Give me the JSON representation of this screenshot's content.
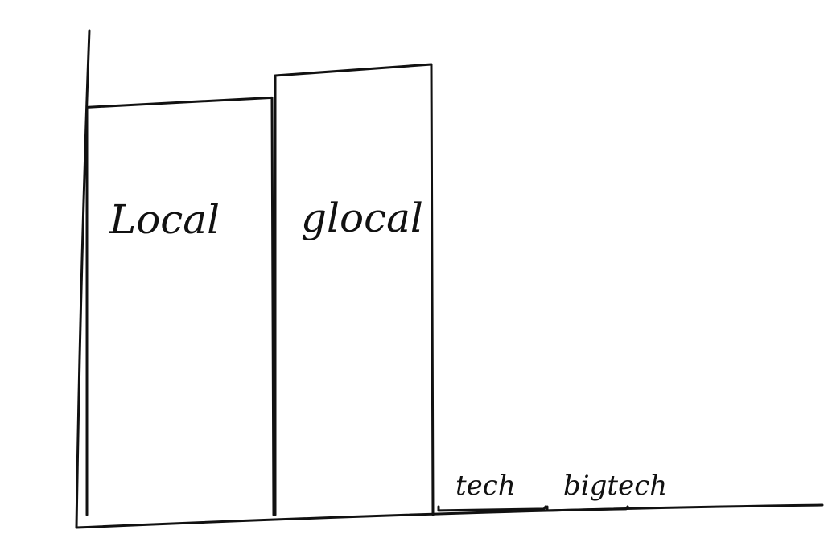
{
  "chart_data": {
    "type": "bar",
    "categories": [
      "Local",
      "glocal",
      "tech",
      "bigtech"
    ],
    "values": [
      100,
      108,
      1,
      1
    ],
    "ylim": [
      0,
      120
    ],
    "grid": false,
    "legend": "none",
    "ink_color": "#111111",
    "background_color": "#ffffff"
  }
}
